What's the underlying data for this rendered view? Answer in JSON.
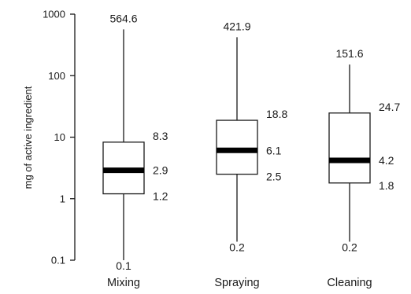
{
  "chart_data": {
    "type": "boxplot",
    "ylabel": "mg of active ingredient",
    "yscale": "log",
    "ylim": [
      0.1,
      1000
    ],
    "yticks": [
      {
        "value": 1000,
        "label": "1000"
      },
      {
        "value": 100,
        "label": "100"
      },
      {
        "value": 10,
        "label": "10"
      },
      {
        "value": 1,
        "label": "1"
      },
      {
        "value": 0.1,
        "label": "0.1"
      }
    ],
    "grid": false,
    "categories": [
      "Mixing",
      "Spraying",
      "Cleaning"
    ],
    "boxes": [
      {
        "category": "Mixing",
        "min": 0.1,
        "q1": 1.2,
        "median": 2.9,
        "q3": 8.3,
        "max": 564.6,
        "labels": {
          "min": "0.1",
          "q1": "1.2",
          "median": "2.9",
          "q3": "8.3",
          "max": "564.6"
        }
      },
      {
        "category": "Spraying",
        "min": 0.2,
        "q1": 2.5,
        "median": 6.1,
        "q3": 18.8,
        "max": 421.9,
        "labels": {
          "min": "0.2",
          "q1": "2.5",
          "median": "6.1",
          "q3": "18.8",
          "max": "421.9"
        }
      },
      {
        "category": "Cleaning",
        "min": 0.2,
        "q1": 1.8,
        "median": 4.2,
        "q3": 24.7,
        "max": 151.6,
        "labels": {
          "min": "0.2",
          "q1": "1.8",
          "median": "4.2",
          "q3": "24.7",
          "max": "151.6"
        }
      }
    ],
    "colors": {
      "ink": "#1a1a1a",
      "box_fill": "#ffffff",
      "median": "#000000"
    }
  }
}
